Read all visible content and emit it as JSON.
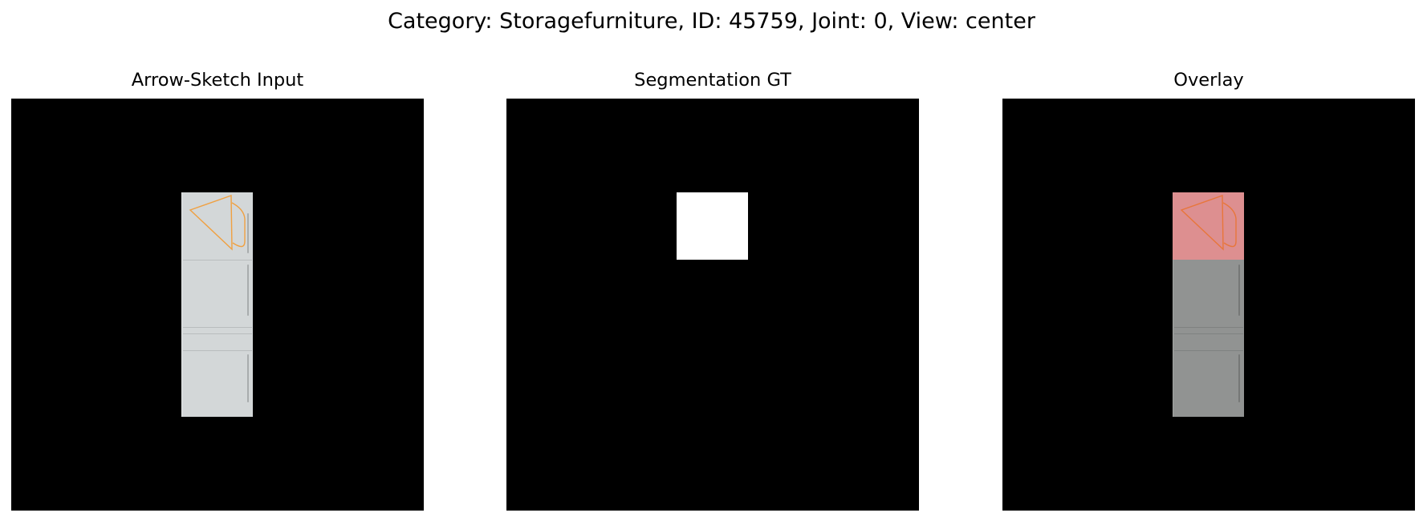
{
  "figure": {
    "title": "Category: Storagefurniture, ID: 45759, Joint: 0, View: center"
  },
  "panels": [
    {
      "title": "Arrow-Sketch Input"
    },
    {
      "title": "Segmentation GT"
    },
    {
      "title": "Overlay"
    }
  ],
  "colors": {
    "background": "#000000",
    "fridge_body": "#d3d7d8",
    "overlay_body": "#919392",
    "mask": "#ffffff",
    "overlay_highlight": "#dd8f90",
    "sketch_stroke": "#f0a040"
  }
}
